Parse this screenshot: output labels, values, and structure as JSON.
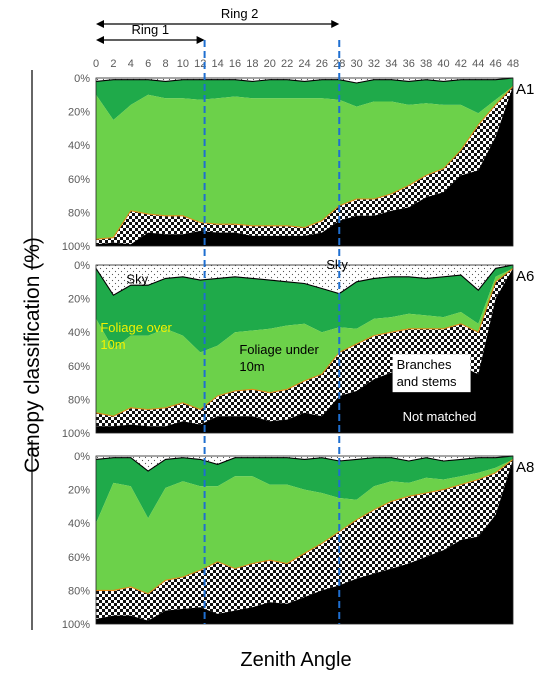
{
  "chart_data": {
    "type": "area",
    "xlabel": "Zenith Angle",
    "ylabel": "Canopy classification (%)",
    "xlim": [
      0,
      48
    ],
    "ylim": [
      0,
      100
    ],
    "x_ticks": [
      "0",
      "2",
      "4",
      "6",
      "8",
      "10",
      "12",
      "14",
      "16",
      "18",
      "20",
      "22",
      "24",
      "26",
      "28",
      "30",
      "32",
      "34",
      "36",
      "38",
      "40",
      "42",
      "44",
      "46",
      "48"
    ],
    "y_ticks": [
      "0%",
      "20%",
      "40%",
      "60%",
      "80%",
      "100%"
    ],
    "rings": [
      {
        "label": "Ring 1",
        "end": 12.5
      },
      {
        "label": "Ring 2",
        "end": 28
      }
    ],
    "colors": {
      "sky": "#ffffff",
      "foliage_over": "#1faa4a",
      "foliage_under": "#6cd14a",
      "branches": "#8a8a8a",
      "not_matched": "#000000",
      "ring_line": "#1f6fd0",
      "ann_yellow": "#f2f200"
    },
    "x": [
      0,
      2,
      4,
      6,
      8,
      10,
      12,
      14,
      16,
      18,
      20,
      22,
      24,
      26,
      28,
      30,
      32,
      34,
      36,
      38,
      40,
      42,
      44,
      46,
      48
    ],
    "panels": [
      {
        "label": "A1",
        "series": [
          {
            "name": "Sky",
            "values": [
              2,
              1,
              1,
              1,
              2,
              1,
              1,
              1,
              1,
              2,
              1,
              1,
              2,
              1,
              1,
              3,
              1,
              1,
              2,
              1,
              2,
              1,
              1,
              1,
              0
            ]
          },
          {
            "name": "Foliage over 10m",
            "values": [
              8,
              24,
              15,
              9,
              10,
              11,
              12,
              11,
              10,
              10,
              11,
              11,
              10,
              11,
              12,
              14,
              13,
              13,
              14,
              14,
              14,
              15,
              20,
              12,
              5
            ]
          },
          {
            "name": "Foliage under 10m",
            "values": [
              86,
              70,
              63,
              71,
              70,
              70,
              73,
              75,
              76,
              76,
              76,
              76,
              77,
              73,
              63,
              55,
              58,
              55,
              48,
              43,
              38,
              27,
              7,
              3,
              0
            ]
          },
          {
            "name": "Branches and stems",
            "values": [
              3,
              3,
              20,
              11,
              11,
              11,
              5,
              5,
              5,
              6,
              6,
              6,
              5,
              7,
              9,
              10,
              10,
              10,
              13,
              13,
              14,
              15,
              27,
              19,
              0
            ]
          },
          {
            "name": "Not matched",
            "values": [
              1,
              2,
              1,
              8,
              7,
              7,
              9,
              8,
              8,
              6,
              6,
              6,
              6,
              8,
              15,
              18,
              18,
              21,
              23,
              29,
              32,
              42,
              45,
              65,
              95
            ]
          }
        ]
      },
      {
        "label": "A6",
        "series": [
          {
            "name": "Sky",
            "values": [
              2,
              18,
              12,
              12,
              8,
              7,
              9,
              8,
              7,
              8,
              9,
              10,
              11,
              14,
              17,
              10,
              8,
              7,
              7,
              8,
              7,
              6,
              15,
              2,
              0
            ]
          },
          {
            "name": "Foliage over 10m",
            "values": [
              30,
              32,
              30,
              30,
              30,
              35,
              43,
              40,
              33,
              31,
              29,
              26,
              24,
              26,
              20,
              28,
              24,
              24,
              22,
              22,
              24,
              22,
              20,
              5,
              2
            ]
          },
          {
            "name": "Foliage under 10m",
            "values": [
              56,
              40,
              43,
              44,
              47,
              40,
              34,
              30,
              35,
              35,
              38,
              38,
              34,
              25,
              15,
              9,
              10,
              9,
              9,
              8,
              7,
              7,
              5,
              3,
              0
            ]
          },
          {
            "name": "Branches and stems",
            "values": [
              8,
              6,
              10,
              10,
              11,
              11,
              9,
              12,
              15,
              16,
              17,
              18,
              19,
              25,
              26,
              28,
              26,
              24,
              22,
              25,
              25,
              25,
              25,
              10,
              0
            ]
          },
          {
            "name": "Not matched",
            "values": [
              4,
              4,
              5,
              4,
              4,
              7,
              5,
              10,
              10,
              10,
              7,
              8,
              12,
              10,
              22,
              25,
              32,
              36,
              40,
              37,
              37,
              40,
              35,
              80,
              98
            ]
          }
        ]
      },
      {
        "label": "A8",
        "series": [
          {
            "name": "Sky",
            "values": [
              2,
              1,
              1,
              9,
              2,
              1,
              2,
              5,
              1,
              1,
              1,
              1,
              2,
              1,
              3,
              2,
              1,
              1,
              3,
              1,
              3,
              2,
              1,
              1,
              0
            ]
          },
          {
            "name": "Foliage over 10m",
            "values": [
              38,
              15,
              17,
              28,
              17,
              14,
              16,
              13,
              11,
              11,
              16,
              16,
              18,
              21,
              22,
              24,
              17,
              14,
              13,
              12,
              11,
              10,
              9,
              6,
              2
            ]
          },
          {
            "name": "Foliage under 10m",
            "values": [
              40,
              64,
              60,
              45,
              55,
              57,
              50,
              45,
              55,
              52,
              45,
              47,
              38,
              30,
              20,
              12,
              14,
              12,
              8,
              9,
              6,
              5,
              4,
              3,
              0
            ]
          },
          {
            "name": "Branches and stems",
            "values": [
              17,
              15,
              17,
              16,
              18,
              19,
              22,
              31,
              25,
              26,
              25,
              24,
              26,
              28,
              32,
              35,
              38,
              40,
              40,
              38,
              36,
              33,
              34,
              25,
              0
            ]
          },
          {
            "name": "Not matched",
            "values": [
              3,
              5,
              5,
              2,
              8,
              9,
              10,
              6,
              8,
              10,
              13,
              12,
              16,
              20,
              23,
              27,
              30,
              33,
              36,
              40,
              44,
              50,
              52,
              65,
              98
            ]
          }
        ]
      }
    ],
    "annotations": [
      {
        "panel": "A6",
        "text": "Sky",
        "x": 3.5,
        "y": 11,
        "color": "#000000"
      },
      {
        "panel": "A6",
        "text": "Sky",
        "x": 26.5,
        "y": 2.5,
        "color": "#000000"
      },
      {
        "panel": "A6",
        "lines": [
          "Foliage over",
          "10m"
        ],
        "x": 0.5,
        "y": 40,
        "color": "#f2f200"
      },
      {
        "panel": "A6",
        "lines": [
          "Foliage under",
          "10m"
        ],
        "x": 16.5,
        "y": 53,
        "color": "#000000"
      },
      {
        "panel": "A6",
        "lines": [
          "Branches",
          "and stems"
        ],
        "x": 34.6,
        "y": 62,
        "color": "#000000",
        "box": true
      },
      {
        "panel": "A6",
        "text": "Not matched",
        "x": 35.3,
        "y": 93,
        "color": "#ffffff"
      }
    ]
  }
}
